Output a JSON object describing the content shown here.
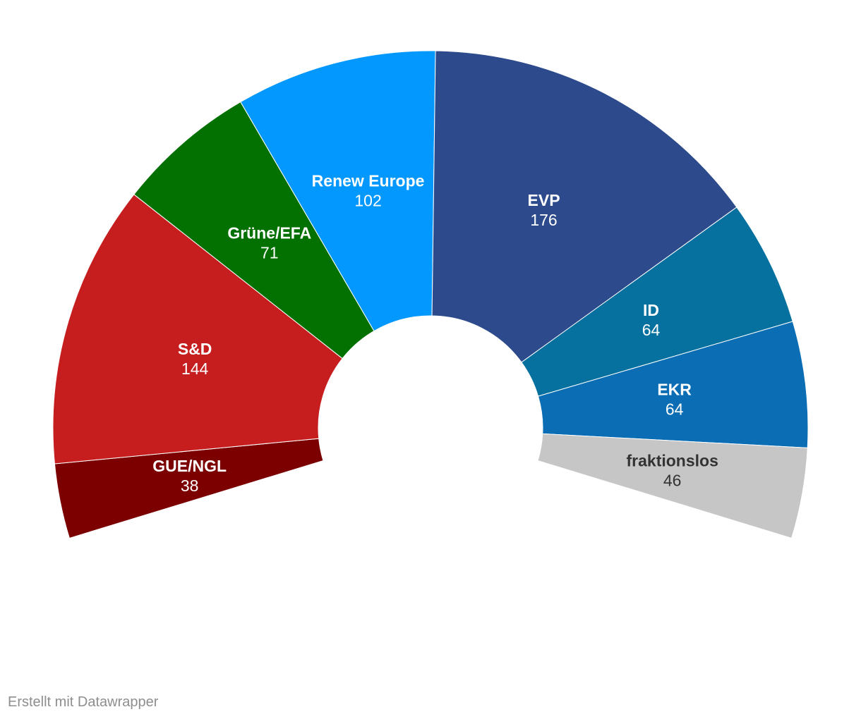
{
  "chart_data": {
    "type": "pie",
    "variant": "semicircle-parliament",
    "title": "",
    "segments": [
      {
        "name": "GUE/NGL",
        "value": 38,
        "color": "#7c0000",
        "text_color": "#ffffff"
      },
      {
        "name": "S&D",
        "value": 144,
        "color": "#c61d1e",
        "text_color": "#ffffff"
      },
      {
        "name": "Grüne/EFA",
        "value": 71,
        "color": "#037101",
        "text_color": "#ffffff"
      },
      {
        "name": "Renew Europe",
        "value": 102,
        "color": "#0398fd",
        "text_color": "#ffffff"
      },
      {
        "name": "EVP",
        "value": 176,
        "color": "#2d4b8c",
        "text_color": "#ffffff"
      },
      {
        "name": "ID",
        "value": 64,
        "color": "#06719f",
        "text_color": "#ffffff"
      },
      {
        "name": "EKR",
        "value": 64,
        "color": "#0b6db4",
        "text_color": "#ffffff"
      },
      {
        "name": "fraktionslos",
        "value": 46,
        "color": "#c6c6c6",
        "text_color": "#333333"
      }
    ]
  },
  "footer": {
    "credit": "Erstellt mit Datawrapper"
  }
}
